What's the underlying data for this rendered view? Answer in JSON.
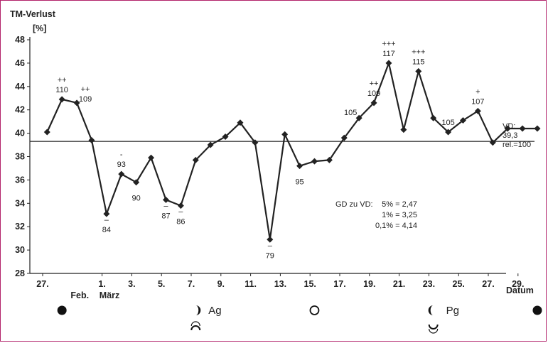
{
  "chart_data": {
    "type": "line",
    "title": "TM-Verlust",
    "ylabel": "[%]",
    "xlabel": "Datum",
    "ylim": [
      28,
      48
    ],
    "yticks": [
      28,
      30,
      32,
      34,
      36,
      38,
      40,
      42,
      44,
      46,
      48
    ],
    "xlim": [
      0,
      32
    ],
    "xticks": [
      {
        "x": 0,
        "label": "27."
      },
      {
        "x": 4,
        "label": "1."
      },
      {
        "x": 6,
        "label": "3."
      },
      {
        "x": 8,
        "label": "5."
      },
      {
        "x": 10,
        "label": "7."
      },
      {
        "x": 12,
        "label": "9."
      },
      {
        "x": 14,
        "label": "11."
      },
      {
        "x": 16,
        "label": "13."
      },
      {
        "x": 18,
        "label": "15."
      },
      {
        "x": 20,
        "label": "17."
      },
      {
        "x": 22,
        "label": "19."
      },
      {
        "x": 24,
        "label": "21."
      },
      {
        "x": 26,
        "label": "23."
      },
      {
        "x": 28,
        "label": "25."
      },
      {
        "x": 30,
        "label": "27."
      },
      {
        "x": 32,
        "label": "29."
      }
    ],
    "month_labels": [
      {
        "x": 2.5,
        "label": "Feb."
      },
      {
        "x": 4.5,
        "label": "März"
      }
    ],
    "series": [
      {
        "x": [
          0.3,
          1.3,
          2.3,
          3.3,
          4.3,
          5.3,
          6.3,
          7.3,
          8.3,
          9.3,
          10.3,
          11.3,
          12.3,
          13.3,
          14.3,
          15.3,
          16.3,
          17.3,
          18.3,
          19.3,
          20.3,
          21.3,
          22.3,
          23.3,
          24.3,
          25.3,
          26.3,
          27.3,
          28.3,
          29.3,
          30.3,
          31.3,
          32.3,
          33.3
        ],
        "values": [
          40.1,
          42.9,
          42.6,
          39.4,
          33.1,
          36.5,
          35.8,
          37.9,
          34.3,
          33.8,
          37.7,
          39.0,
          39.7,
          40.9,
          39.2,
          30.9,
          39.9,
          37.2,
          37.6,
          37.7,
          39.6,
          41.3,
          42.6,
          46.0,
          40.3,
          45.3,
          41.3,
          40.1,
          41.1,
          41.9,
          39.2,
          40.4,
          40.4,
          40.4
        ]
      }
    ],
    "reference_line": {
      "value": 39.3
    },
    "point_labels": [
      {
        "i": 1,
        "text": "110",
        "pos": "above"
      },
      {
        "i": 2,
        "text": "109",
        "pos": "aboveright"
      },
      {
        "i": 4,
        "text": "84",
        "pos": "below"
      },
      {
        "i": 5,
        "text": "93",
        "pos": "above"
      },
      {
        "i": 6,
        "text": "90",
        "pos": "below"
      },
      {
        "i": 8,
        "text": "87",
        "pos": "below"
      },
      {
        "i": 9,
        "text": "86",
        "pos": "below"
      },
      {
        "i": 15,
        "text": "79",
        "pos": "below"
      },
      {
        "i": 17,
        "text": "95",
        "pos": "below"
      },
      {
        "i": 21,
        "text": "105",
        "pos": "aboveleft"
      },
      {
        "i": 22,
        "text": "109",
        "pos": "above"
      },
      {
        "i": 23,
        "text": "117",
        "pos": "above"
      },
      {
        "i": 25,
        "text": "115",
        "pos": "above"
      },
      {
        "i": 27,
        "text": "105",
        "pos": "above"
      },
      {
        "i": 29,
        "text": "107",
        "pos": "above"
      }
    ],
    "significance_marks": [
      {
        "i": 1,
        "text": "++"
      },
      {
        "i": 2,
        "text": "++"
      },
      {
        "i": 4,
        "text": "–"
      },
      {
        "i": 5,
        "text": "-"
      },
      {
        "i": 8,
        "text": "–"
      },
      {
        "i": 9,
        "text": "–"
      },
      {
        "i": 15,
        "text": "–"
      },
      {
        "i": 22,
        "text": "++"
      },
      {
        "i": 23,
        "text": "+++"
      },
      {
        "i": 25,
        "text": "+++"
      },
      {
        "i": 29,
        "text": "+"
      }
    ],
    "vd_label": [
      "VD:",
      "39,3",
      "rel.=100"
    ],
    "gd_note": {
      "label": "GD zu VD:",
      "lines": [
        "5% = 2,47",
        "1% = 3,25",
        "0,1% = 4,14"
      ]
    },
    "moon_phases": [
      {
        "x": 1.3,
        "icon": "new-moon-icon",
        "label": ""
      },
      {
        "x": 10.3,
        "icon": "first-quarter-moon-icon",
        "label": "Ag"
      },
      {
        "x": 18.3,
        "icon": "full-moon-icon",
        "label": ""
      },
      {
        "x": 26.3,
        "icon": "last-quarter-moon-icon",
        "label": "Pg"
      },
      {
        "x": 33.3,
        "icon": "new-moon-icon",
        "label": ""
      }
    ],
    "node_symbols": [
      {
        "x": 10.3,
        "icon": "ascending-node-icon"
      },
      {
        "x": 26.3,
        "icon": "descending-node-icon"
      }
    ]
  }
}
